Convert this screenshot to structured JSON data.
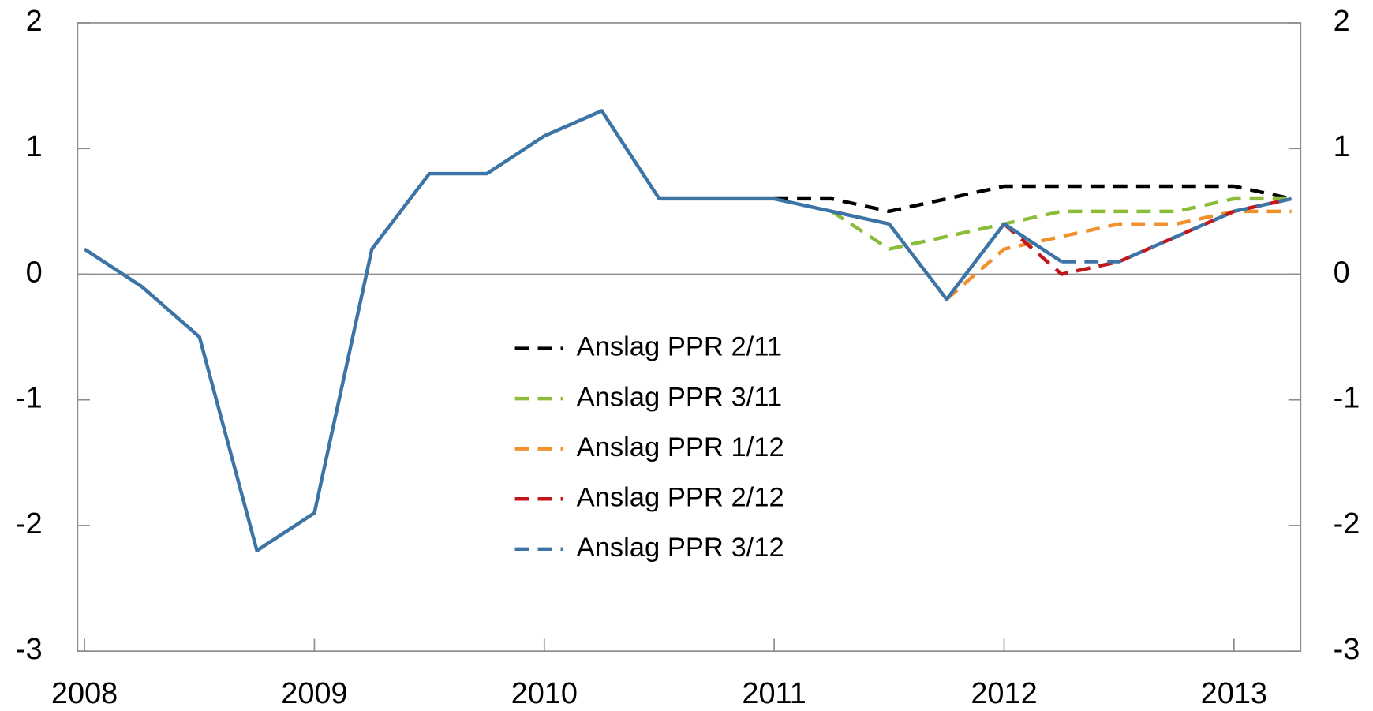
{
  "chart_data": {
    "type": "line",
    "x": [
      2008,
      2008.25,
      2008.5,
      2008.75,
      2009,
      2009.25,
      2009.5,
      2009.75,
      2010,
      2010.25,
      2010.5,
      2010.75,
      2011,
      2011.25,
      2011.5,
      2011.75,
      2012,
      2012.25,
      2012.5,
      2012.75,
      2013,
      2013.25
    ],
    "series": [
      {
        "color": "#3c74a6",
        "dashed": false,
        "values": [
          0.2,
          -0.1,
          -0.5,
          -2.2,
          -1.9,
          0.2,
          0.8,
          0.8,
          1.1,
          1.3,
          0.6,
          0.6,
          0.6,
          0.5,
          0.4,
          -0.2,
          0.4,
          0.1,
          null,
          null,
          null,
          null
        ]
      },
      {
        "name": "Anslag PPR 2/11",
        "color": "#000000",
        "dashed": true,
        "values": [
          null,
          null,
          null,
          null,
          null,
          null,
          null,
          null,
          null,
          null,
          null,
          null,
          0.6,
          0.6,
          0.5,
          0.6,
          0.7,
          0.7,
          0.7,
          0.7,
          0.7,
          0.6
        ]
      },
      {
        "name": "Anslag PPR 3/11",
        "color": "#8cbd3a",
        "dashed": true,
        "values": [
          null,
          null,
          null,
          null,
          null,
          null,
          null,
          null,
          null,
          null,
          null,
          null,
          null,
          0.5,
          0.2,
          0.3,
          0.4,
          0.5,
          0.5,
          0.5,
          0.6,
          0.6
        ]
      },
      {
        "name": "Anslag PPR 1/12",
        "color": "#f0912e",
        "dashed": true,
        "values": [
          null,
          null,
          null,
          null,
          null,
          null,
          null,
          null,
          null,
          null,
          null,
          null,
          null,
          null,
          null,
          -0.2,
          0.2,
          0.3,
          0.4,
          0.4,
          0.5,
          0.5
        ]
      },
      {
        "name": "Anslag PPR 2/12",
        "color": "#c0161c",
        "dashed": true,
        "values": [
          null,
          null,
          null,
          null,
          null,
          null,
          null,
          null,
          null,
          null,
          null,
          null,
          null,
          null,
          null,
          null,
          0.4,
          0.0,
          0.1,
          0.3,
          0.5,
          0.6
        ]
      },
      {
        "name": "Anslag PPR 3/12",
        "color": "#3c74a6",
        "dashed": true,
        "values": [
          null,
          null,
          null,
          null,
          null,
          null,
          null,
          null,
          null,
          null,
          null,
          null,
          null,
          null,
          null,
          null,
          null,
          0.1,
          0.1,
          0.3,
          0.5,
          0.6
        ]
      }
    ],
    "xlim": [
      2007.97,
      2013.29
    ],
    "xticks": [
      2008,
      2009,
      2010,
      2011,
      2012,
      2013
    ],
    "ylim": [
      -3,
      2
    ],
    "yticks": [
      -3,
      -2,
      -1,
      0,
      1,
      2
    ],
    "y2lim": [
      -3,
      2
    ],
    "y2ticks": [
      -3,
      -2,
      -1,
      0,
      1,
      2
    ]
  }
}
